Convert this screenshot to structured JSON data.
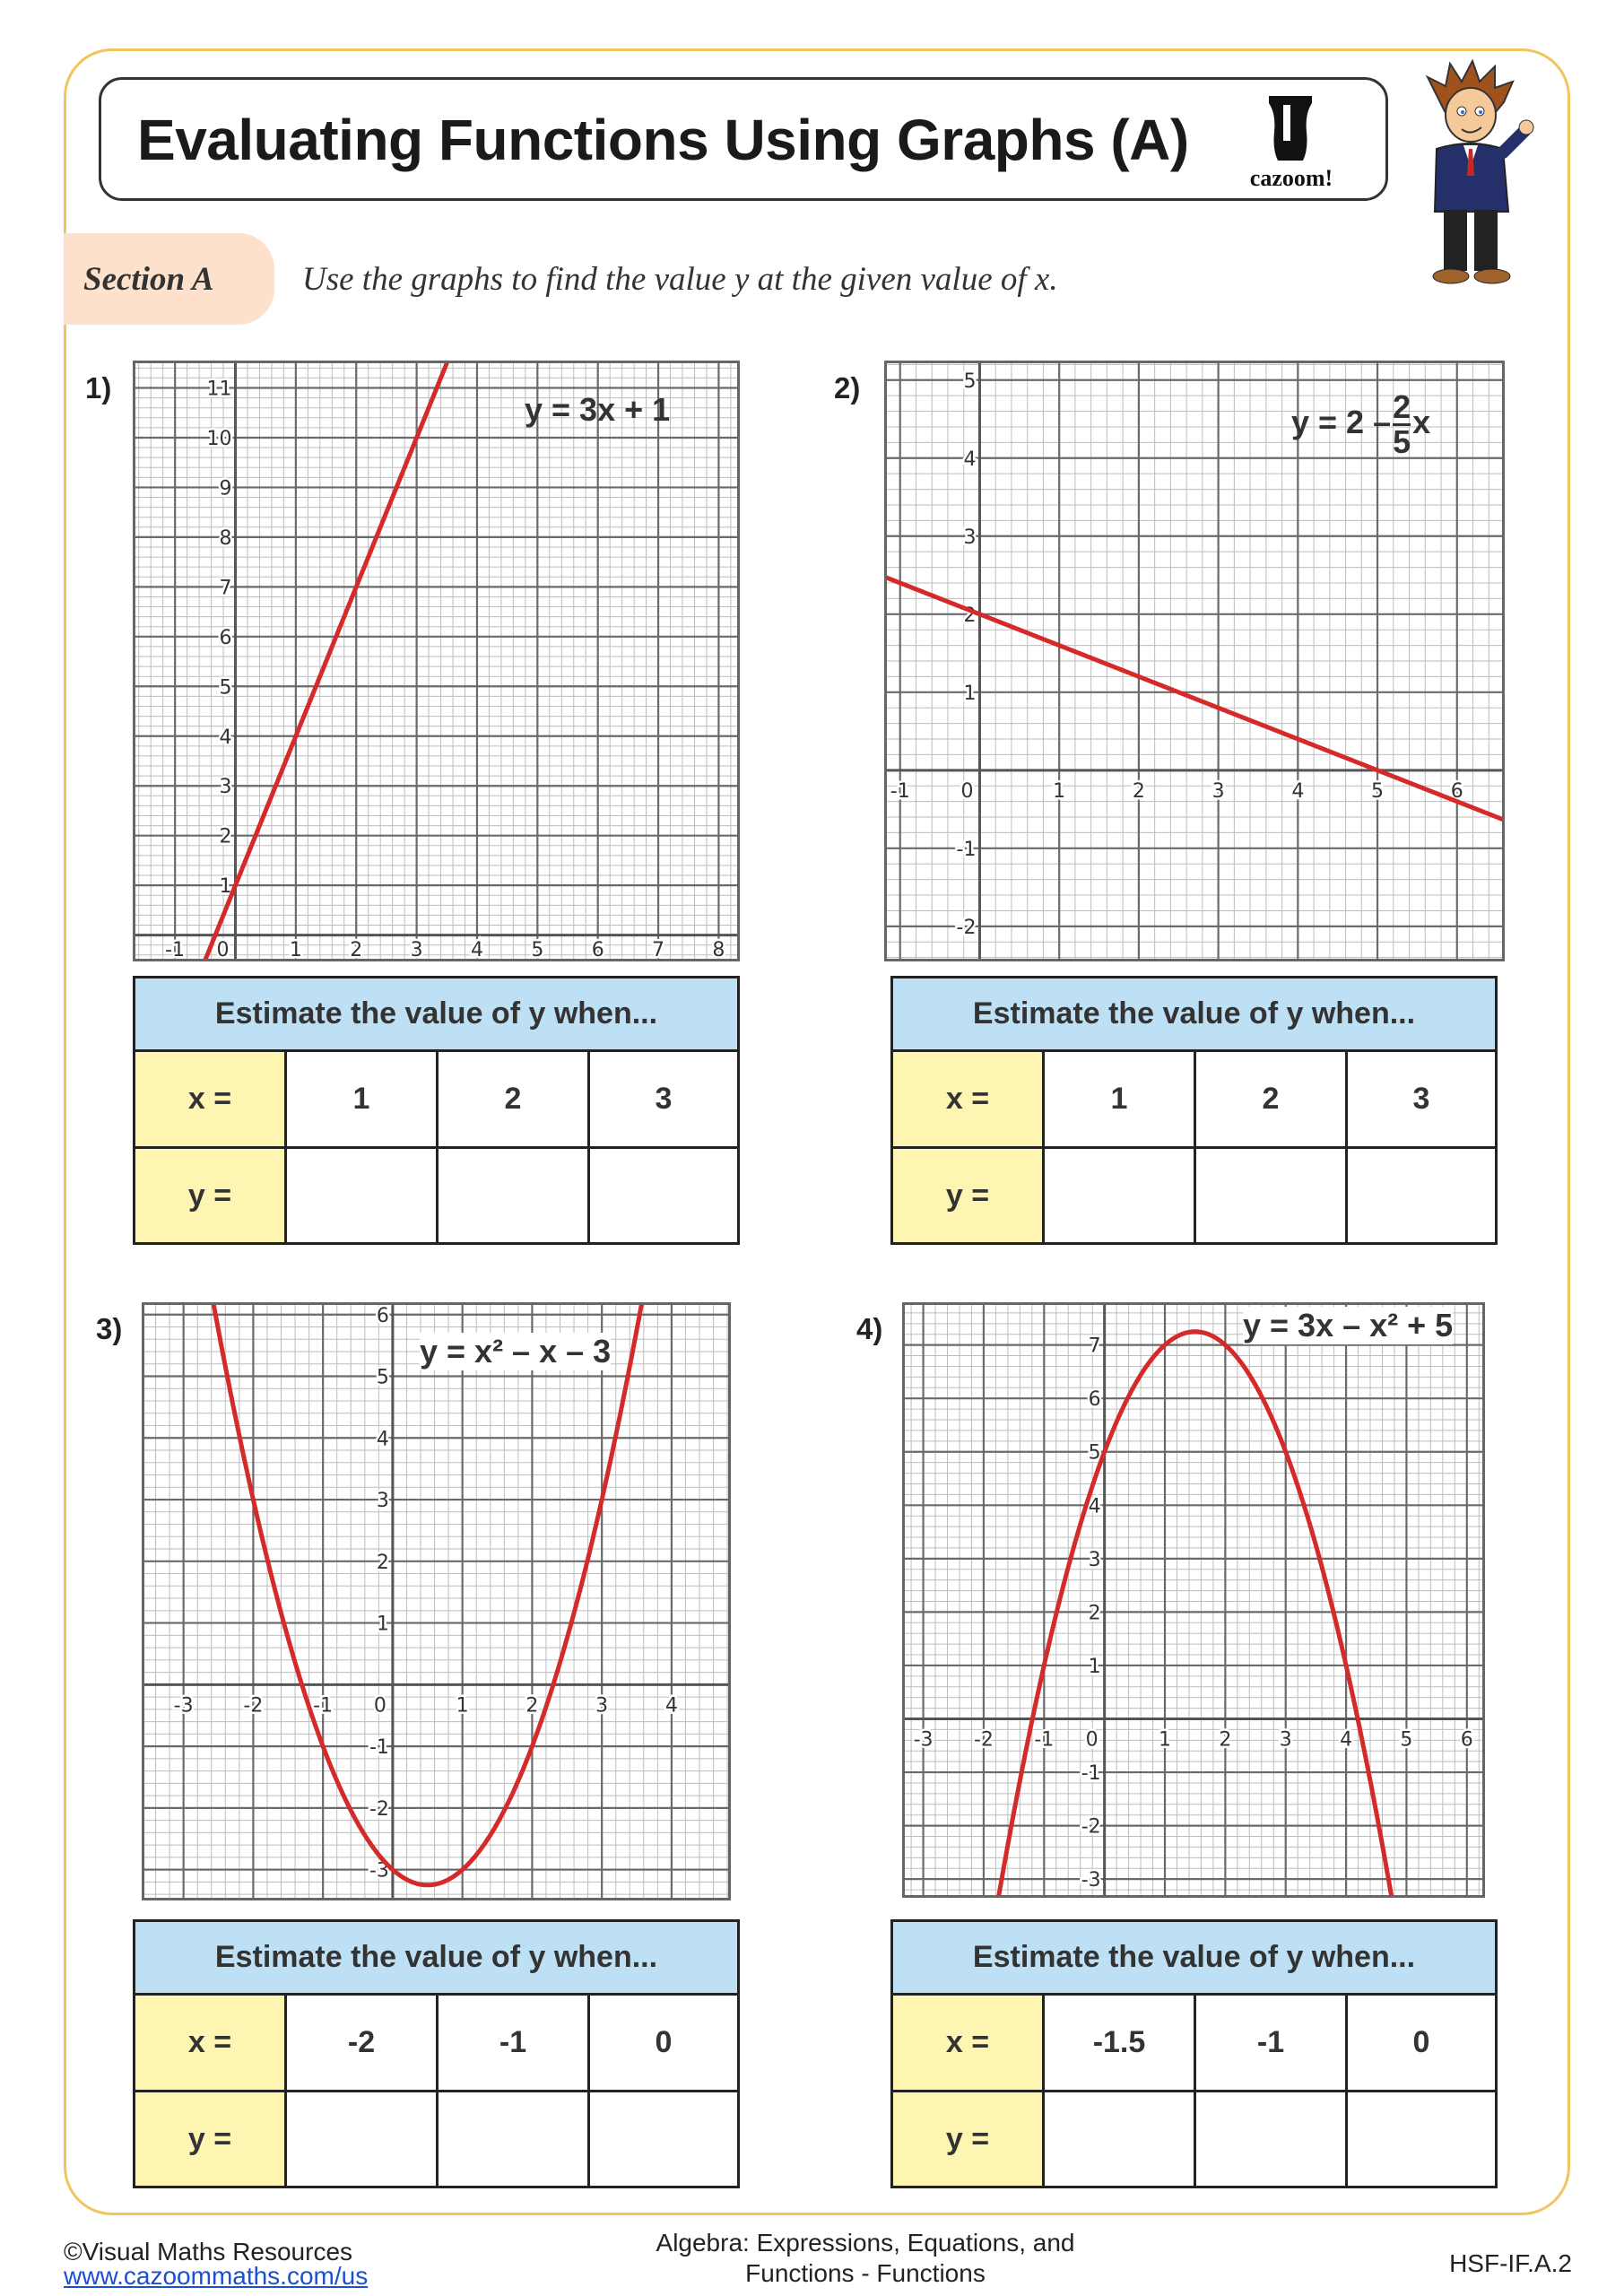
{
  "header": {
    "title": "Evaluating Functions Using Graphs (A)",
    "logo_text": "cazoom!"
  },
  "section": {
    "label": "Section A",
    "instruction": "Use the graphs to find the value y at the given value of x."
  },
  "questions": [
    {
      "number": "1)",
      "equation": {
        "text": "y = 3x + 1"
      },
      "table": {
        "header": "Estimate the value of y when...",
        "x_label": "x =",
        "y_label": "y =",
        "x_values": [
          "1",
          "2",
          "3"
        ],
        "y_values": [
          "",
          "",
          ""
        ]
      }
    },
    {
      "number": "2)",
      "equation": {
        "prefix": "y = 2 –",
        "numerator": "2",
        "denominator": "5",
        "suffix": "x"
      },
      "table": {
        "header": "Estimate the value of y when...",
        "x_label": "x =",
        "y_label": "y =",
        "x_values": [
          "1",
          "2",
          "3"
        ],
        "y_values": [
          "",
          "",
          ""
        ]
      }
    },
    {
      "number": "3)",
      "equation": {
        "text": "y = x² – x – 3"
      },
      "table": {
        "header": "Estimate the value of y when...",
        "x_label": "x =",
        "y_label": "y =",
        "x_values": [
          "-2",
          "-1",
          "0"
        ],
        "y_values": [
          "",
          "",
          ""
        ]
      }
    },
    {
      "number": "4)",
      "equation": {
        "text": "y = 3x – x² + 5"
      },
      "table": {
        "header": "Estimate the value of y when...",
        "x_label": "x =",
        "y_label": "y =",
        "x_values": [
          "-1.5",
          "-1",
          "0"
        ],
        "y_values": [
          "",
          "",
          ""
        ]
      }
    }
  ],
  "chart_data": [
    {
      "type": "line",
      "equation": "y = 3x + 1",
      "function": {
        "a": 0,
        "b": 3,
        "c": 1
      },
      "xlim": [
        -1.7,
        8.35
      ],
      "ylim": [
        -0.53,
        11.55
      ],
      "x_ticks": [
        "-1",
        "0",
        "1",
        "2",
        "3",
        "4",
        "5",
        "6",
        "7",
        "8"
      ],
      "y_ticks": [
        "1",
        "2",
        "3",
        "4",
        "5",
        "6",
        "7",
        "8",
        "9",
        "10",
        "11"
      ],
      "grid": true,
      "minor_per_unit": 5,
      "color": "#d42a2a"
    },
    {
      "type": "line",
      "equation": "y = 2 – 2/5 x",
      "function": {
        "a": 0,
        "b": -0.4,
        "c": 2
      },
      "xlim": [
        -1.2,
        6.6
      ],
      "ylim": [
        -2.45,
        5.25
      ],
      "x_ticks": [
        "-1",
        "0",
        "1",
        "2",
        "3",
        "4",
        "5",
        "6"
      ],
      "y_ticks": [
        "-2",
        "-1",
        "1",
        "2",
        "3",
        "4",
        "5"
      ],
      "grid": true,
      "minor_per_unit": 5,
      "color": "#d42a2a"
    },
    {
      "type": "line",
      "equation": "y = x² – x – 3",
      "function": {
        "a": 1,
        "b": -1,
        "c": -3
      },
      "xlim": [
        -3.6,
        4.85
      ],
      "ylim": [
        -3.5,
        6.2
      ],
      "x_ticks": [
        "-3",
        "-2",
        "-1",
        "0",
        "1",
        "2",
        "3",
        "4"
      ],
      "y_ticks": [
        "-3",
        "-2",
        "-1",
        "1",
        "2",
        "3",
        "4",
        "5",
        "6"
      ],
      "grid": true,
      "minor_per_unit": 5,
      "color": "#d42a2a"
    },
    {
      "type": "line",
      "equation": "y = 3x – x² + 5",
      "function": {
        "a": -1,
        "b": 3,
        "c": 5
      },
      "xlim": [
        -3.35,
        6.3
      ],
      "ylim": [
        -3.35,
        7.8
      ],
      "x_ticks": [
        "-3",
        "-2",
        "-1",
        "0",
        "1",
        "2",
        "3",
        "4",
        "5",
        "6"
      ],
      "y_ticks": [
        "-3",
        "-2",
        "-1",
        "1",
        "2",
        "3",
        "4",
        "5",
        "6",
        "7"
      ],
      "grid": true,
      "minor_per_unit": 5,
      "color": "#d42a2a"
    }
  ],
  "footer": {
    "copyright": "©Visual Maths Resources",
    "link": "www.cazoommaths.com/us",
    "topic_line1": "Algebra: Expressions, Equations, and",
    "topic_line2": "Functions - Functions",
    "code": "HSF-IF.A.2"
  }
}
